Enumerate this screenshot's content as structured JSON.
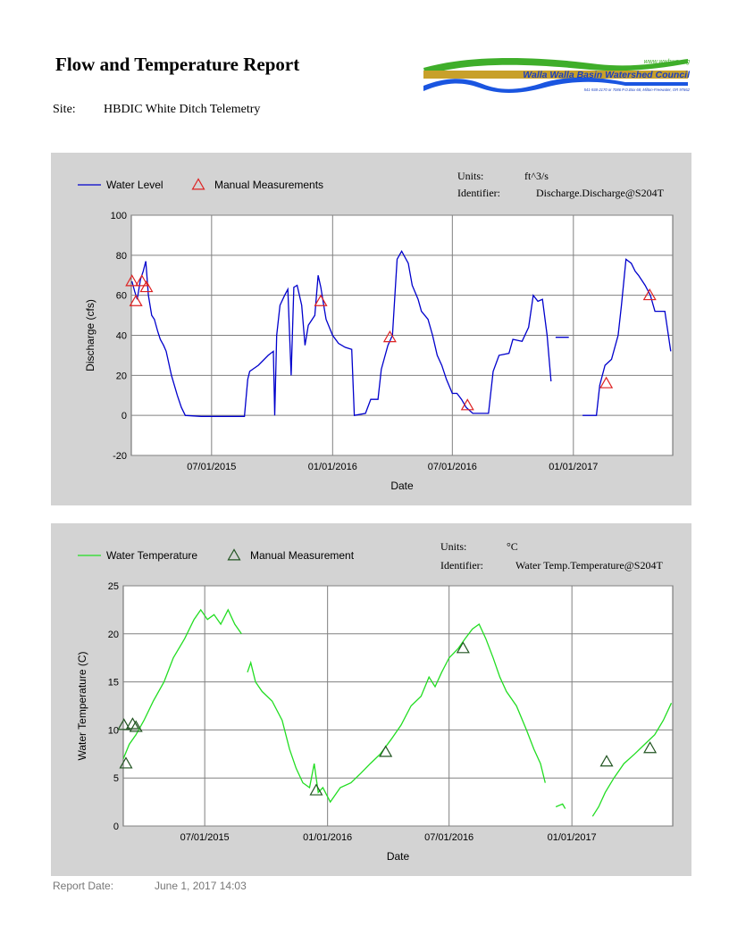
{
  "header": {
    "title": "Flow and Temperature Report",
    "site_label": "Site:",
    "site_name": "HBDIC White Ditch Telemetry"
  },
  "logo": {
    "url_text": "www.wwbwc.org",
    "name": "Walla Walla Basin Watershed Council",
    "address": "541-938-2170 or 7086    P.O.Box 68, Milton-Freewater, OR 97862",
    "colors": {
      "green": "#3fae2a",
      "gold": "#c8a02a",
      "blue": "#1a55e0",
      "name_text": "#1a3fc0"
    }
  },
  "footer": {
    "report_date_label": "Report Date:",
    "report_date": "June 1, 2017 14:03"
  },
  "chart_data": [
    {
      "type": "line",
      "units_label": "Units:",
      "units": "ft^3/s",
      "identifier_label": "Identifier:",
      "identifier": "Discharge.Discharge@S204T",
      "xlabel": "Date",
      "ylabel": "Discharge (cfs)",
      "ylim": [
        -20,
        100
      ],
      "yticks": [
        "-20",
        "0",
        "20",
        "40",
        "60",
        "80",
        "100"
      ],
      "xlim": [
        "2015-03-01",
        "2017-06-01"
      ],
      "xticks": [
        {
          "date": "2015-07-01",
          "label": "07/01/2015"
        },
        {
          "date": "2016-01-01",
          "label": "01/01/2016"
        },
        {
          "date": "2016-07-01",
          "label": "07/01/2016"
        },
        {
          "date": "2017-01-01",
          "label": "01/01/2017"
        }
      ],
      "grid": true,
      "legend_position": "top-left",
      "series": [
        {
          "name": "Water Level",
          "color": "#0000cc",
          "points": [
            [
              "2015-03-02",
              67
            ],
            [
              "2015-03-06",
              62
            ],
            [
              "2015-03-10",
              58
            ],
            [
              "2015-03-15",
              68
            ],
            [
              "2015-03-19",
              72
            ],
            [
              "2015-03-23",
              77
            ],
            [
              "2015-03-27",
              60
            ],
            [
              "2015-04-01",
              50
            ],
            [
              "2015-04-05",
              48
            ],
            [
              "2015-04-10",
              42
            ],
            [
              "2015-04-14",
              38
            ],
            [
              "2015-04-19",
              35
            ],
            [
              "2015-04-23",
              32
            ],
            [
              "2015-05-01",
              20
            ],
            [
              "2015-05-10",
              10
            ],
            [
              "2015-05-16",
              4
            ],
            [
              "2015-05-22",
              0
            ],
            [
              "2015-06-15",
              -0.5
            ],
            [
              "2015-07-15",
              -0.5
            ],
            [
              "2015-08-20",
              -0.5
            ],
            [
              "2015-08-25",
              18
            ],
            [
              "2015-08-28",
              22
            ],
            [
              "2015-09-10",
              25
            ],
            [
              "2015-09-25",
              30
            ],
            [
              "2015-10-03",
              32
            ],
            [
              "2015-10-05",
              0
            ],
            [
              "2015-10-08",
              40
            ],
            [
              "2015-10-13",
              55
            ],
            [
              "2015-10-20",
              60
            ],
            [
              "2015-10-25",
              63
            ],
            [
              "2015-10-30",
              20
            ],
            [
              "2015-11-03",
              64
            ],
            [
              "2015-11-08",
              65
            ],
            [
              "2015-11-15",
              55
            ],
            [
              "2015-11-20",
              35
            ],
            [
              "2015-11-25",
              45
            ],
            [
              "2015-12-05",
              50
            ],
            [
              "2015-12-10",
              70
            ],
            [
              "2015-12-14",
              64
            ],
            [
              "2015-12-18",
              56
            ],
            [
              "2015-12-22",
              48
            ],
            [
              "2016-01-01",
              40
            ],
            [
              "2016-01-10",
              36
            ],
            [
              "2016-01-20",
              34
            ],
            [
              "2016-01-30",
              33
            ],
            [
              "2016-02-03",
              0
            ],
            [
              "2016-02-20",
              1
            ],
            [
              "2016-02-28",
              8
            ],
            [
              "2016-03-10",
              8
            ],
            [
              "2016-03-15",
              23
            ],
            [
              "2016-03-25",
              35
            ],
            [
              "2016-04-01",
              40
            ],
            [
              "2016-04-05",
              62
            ],
            [
              "2016-04-08",
              78
            ],
            [
              "2016-04-15",
              82
            ],
            [
              "2016-04-25",
              76
            ],
            [
              "2016-05-01",
              65
            ],
            [
              "2016-05-10",
              58
            ],
            [
              "2016-05-15",
              52
            ],
            [
              "2016-05-25",
              48
            ],
            [
              "2016-06-01",
              40
            ],
            [
              "2016-06-08",
              30
            ],
            [
              "2016-06-15",
              25
            ],
            [
              "2016-06-22",
              18
            ],
            [
              "2016-07-01",
              11
            ],
            [
              "2016-07-08",
              11
            ],
            [
              "2016-07-15",
              8
            ],
            [
              "2016-07-22",
              4
            ],
            [
              "2016-08-01",
              1
            ],
            [
              "2016-08-25",
              1
            ],
            [
              "2016-09-01",
              22
            ],
            [
              "2016-09-10",
              30
            ],
            [
              "2016-09-25",
              31
            ],
            [
              "2016-10-01",
              38
            ],
            [
              "2016-10-15",
              37
            ],
            [
              "2016-10-25",
              44
            ],
            [
              "2016-11-01",
              60
            ],
            [
              "2016-11-08",
              57
            ],
            [
              "2016-11-15",
              58
            ],
            [
              "2016-11-22",
              40
            ],
            [
              "2016-11-28",
              17
            ],
            [
              "2016-12-01",
              null
            ],
            [
              "2016-12-05",
              39
            ],
            [
              "2016-12-25",
              39
            ],
            [
              "2016-12-28",
              null
            ],
            [
              "2017-01-15",
              0
            ],
            [
              "2017-02-05",
              0
            ],
            [
              "2017-02-10",
              15
            ],
            [
              "2017-02-18",
              25
            ],
            [
              "2017-02-28",
              28
            ],
            [
              "2017-03-10",
              40
            ],
            [
              "2017-03-15",
              55
            ],
            [
              "2017-03-22",
              78
            ],
            [
              "2017-03-30",
              76
            ],
            [
              "2017-04-05",
              72
            ],
            [
              "2017-04-10",
              70
            ],
            [
              "2017-04-20",
              65
            ],
            [
              "2017-04-28",
              60
            ],
            [
              "2017-05-05",
              52
            ],
            [
              "2017-05-20",
              52
            ],
            [
              "2017-05-29",
              32
            ]
          ]
        },
        {
          "name": "Manual Measurements",
          "color": "#dd2222",
          "marker": "triangle",
          "points": [
            [
              "2015-03-02",
              67
            ],
            [
              "2015-03-08",
              57
            ],
            [
              "2015-03-17",
              67
            ],
            [
              "2015-03-24",
              64
            ],
            [
              "2015-12-14",
              57
            ],
            [
              "2016-03-28",
              39
            ],
            [
              "2016-07-24",
              5
            ],
            [
              "2017-02-20",
              16
            ],
            [
              "2017-04-27",
              60
            ]
          ]
        }
      ]
    },
    {
      "type": "line",
      "units_label": "Units:",
      "units": "°C",
      "identifier_label": "Identifier:",
      "identifier": "Water Temp.Temperature@S204T",
      "xlabel": "Date",
      "ylabel": "Water Temperature (C)",
      "ylim": [
        0,
        25
      ],
      "yticks": [
        "0",
        "5",
        "10",
        "15",
        "20",
        "25"
      ],
      "xlim": [
        "2015-03-01",
        "2017-06-01"
      ],
      "xticks": [
        {
          "date": "2015-07-01",
          "label": "07/01/2015"
        },
        {
          "date": "2016-01-01",
          "label": "01/01/2016"
        },
        {
          "date": "2016-07-01",
          "label": "07/01/2016"
        },
        {
          "date": "2017-01-01",
          "label": "01/01/2017"
        }
      ],
      "grid": true,
      "legend_position": "top-left",
      "series": [
        {
          "name": "Water Temperature",
          "color": "#22dd22",
          "points": [
            [
              "2015-03-01",
              7
            ],
            [
              "2015-03-10",
              8.5
            ],
            [
              "2015-03-20",
              9.5
            ],
            [
              "2015-04-01",
              11
            ],
            [
              "2015-04-15",
              13
            ],
            [
              "2015-05-01",
              15
            ],
            [
              "2015-05-15",
              17.5
            ],
            [
              "2015-06-01",
              19.5
            ],
            [
              "2015-06-15",
              21.5
            ],
            [
              "2015-06-25",
              22.5
            ],
            [
              "2015-07-05",
              21.5
            ],
            [
              "2015-07-15",
              22
            ],
            [
              "2015-07-25",
              21
            ],
            [
              "2015-08-05",
              22.5
            ],
            [
              "2015-08-15",
              21
            ],
            [
              "2015-08-25",
              20
            ],
            [
              "2015-09-01",
              null
            ],
            [
              "2015-09-03",
              16
            ],
            [
              "2015-09-08",
              17
            ],
            [
              "2015-09-15",
              15
            ],
            [
              "2015-09-25",
              14
            ],
            [
              "2015-10-10",
              13
            ],
            [
              "2015-10-25",
              11
            ],
            [
              "2015-11-05",
              8
            ],
            [
              "2015-11-15",
              6
            ],
            [
              "2015-11-25",
              4.5
            ],
            [
              "2015-12-05",
              4
            ],
            [
              "2015-12-12",
              6.5
            ],
            [
              "2015-12-18",
              3.5
            ],
            [
              "2015-12-25",
              4
            ],
            [
              "2016-01-05",
              2.5
            ],
            [
              "2016-01-20",
              4
            ],
            [
              "2016-02-05",
              4.5
            ],
            [
              "2016-02-20",
              5.5
            ],
            [
              "2016-03-05",
              6.5
            ],
            [
              "2016-03-20",
              7.5
            ],
            [
              "2016-04-05",
              9
            ],
            [
              "2016-04-20",
              10.5
            ],
            [
              "2016-05-05",
              12.5
            ],
            [
              "2016-05-20",
              13.5
            ],
            [
              "2016-06-01",
              15.5
            ],
            [
              "2016-06-10",
              14.5
            ],
            [
              "2016-06-20",
              16
            ],
            [
              "2016-07-01",
              17.5
            ],
            [
              "2016-07-15",
              18.5
            ],
            [
              "2016-07-25",
              19.5
            ],
            [
              "2016-08-05",
              20.5
            ],
            [
              "2016-08-15",
              21
            ],
            [
              "2016-08-25",
              19.5
            ],
            [
              "2016-09-05",
              17.5
            ],
            [
              "2016-09-15",
              15.5
            ],
            [
              "2016-09-25",
              14
            ],
            [
              "2016-10-10",
              12.5
            ],
            [
              "2016-10-25",
              10
            ],
            [
              "2016-11-05",
              8
            ],
            [
              "2016-11-15",
              6.5
            ],
            [
              "2016-11-22",
              4.5
            ],
            [
              "2016-11-24",
              null
            ],
            [
              "2016-12-08",
              2
            ],
            [
              "2016-12-18",
              2.3
            ],
            [
              "2016-12-22",
              1.8
            ],
            [
              "2016-12-24",
              null
            ],
            [
              "2017-02-01",
              1
            ],
            [
              "2017-02-10",
              2
            ],
            [
              "2017-02-20",
              3.5
            ],
            [
              "2017-03-05",
              5
            ],
            [
              "2017-03-20",
              6.5
            ],
            [
              "2017-04-05",
              7.5
            ],
            [
              "2017-04-20",
              8.5
            ],
            [
              "2017-05-05",
              9.5
            ],
            [
              "2017-05-18",
              11
            ],
            [
              "2017-05-30",
              12.8
            ]
          ]
        },
        {
          "name": "Manual Measurement",
          "color": "#225522",
          "marker": "triangle",
          "points": [
            [
              "2015-03-02",
              10.5
            ],
            [
              "2015-03-05",
              6.5
            ],
            [
              "2015-03-15",
              10.6
            ],
            [
              "2015-03-20",
              10.3
            ],
            [
              "2015-12-15",
              3.7
            ],
            [
              "2016-03-28",
              7.7
            ],
            [
              "2016-07-22",
              18.5
            ],
            [
              "2017-02-22",
              6.7
            ],
            [
              "2017-04-28",
              8.1
            ]
          ]
        }
      ]
    }
  ]
}
